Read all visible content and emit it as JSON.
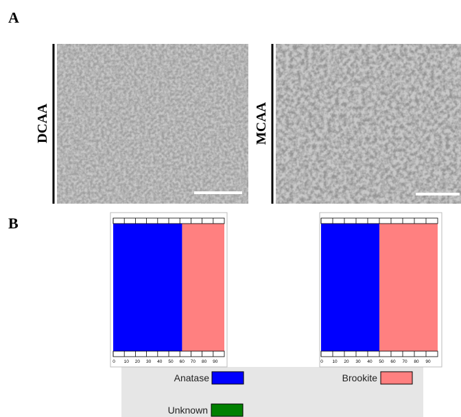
{
  "panel_labels": [
    "A",
    "B"
  ],
  "images": [
    {
      "label": "DCAA"
    },
    {
      "label": "MCAA"
    }
  ],
  "chart_data": [
    {
      "type": "stacked-bar",
      "orientation": "horizontal",
      "series": [
        {
          "name": "Anatase",
          "color": "#0000ff",
          "values": [
            62
          ]
        },
        {
          "name": "Brookite",
          "color": "#ff8080",
          "values": [
            38
          ]
        },
        {
          "name": "Unknown",
          "color": "#008000",
          "values": [
            0
          ]
        }
      ],
      "xlim": [
        0,
        100
      ],
      "xticks": [
        0,
        10,
        20,
        30,
        40,
        50,
        60,
        70,
        80,
        90
      ]
    },
    {
      "type": "stacked-bar",
      "orientation": "horizontal",
      "series": [
        {
          "name": "Anatase",
          "color": "#0000ff",
          "values": [
            50
          ]
        },
        {
          "name": "Brookite",
          "color": "#ff8080",
          "values": [
            50
          ]
        },
        {
          "name": "Unknown",
          "color": "#008000",
          "values": [
            0
          ]
        }
      ],
      "xlim": [
        0,
        100
      ],
      "xticks": [
        0,
        10,
        20,
        30,
        40,
        50,
        60,
        70,
        80,
        90
      ]
    }
  ]
}
